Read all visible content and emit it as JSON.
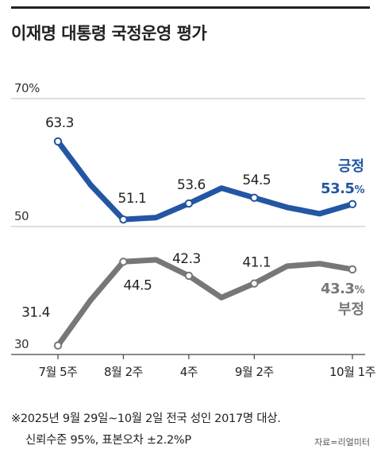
{
  "title": "이재명 대통령 국정운영 평가",
  "footnote": {
    "line1": "※2025년 9월 29일~10월 2일 전국 성인 2017명 대상.",
    "line2": "신뢰수준 95%, 표본오차 ±2.2%P"
  },
  "source": "자료=리얼미터",
  "colors": {
    "positive": "#2356a3",
    "negative": "#777777",
    "axis": "#444444",
    "grid": "#bbbbbb"
  },
  "chart_data": {
    "type": "line",
    "y_ticks": [
      {
        "value": 70,
        "label": "70%"
      },
      {
        "value": 50,
        "label": "50"
      },
      {
        "value": 30,
        "label": "30"
      }
    ],
    "ylim": [
      30,
      70
    ],
    "x_ticks": [
      {
        "x": 0,
        "label": "7월 5주"
      },
      {
        "x": 2,
        "label": "8월 2주"
      },
      {
        "x": 4,
        "label": "4주"
      },
      {
        "x": 6,
        "label": "9월 2주"
      },
      {
        "x": 9,
        "label": "10월 1주"
      }
    ],
    "xlim": [
      0,
      9
    ],
    "series": [
      {
        "name": "긍정",
        "final_label": "53.5",
        "final_unit": "%",
        "points": [
          {
            "x": 0,
            "y": 63.3,
            "label": "63.3",
            "marker": true
          },
          {
            "x": 1,
            "y": 56.5
          },
          {
            "x": 2,
            "y": 51.1,
            "label": "51.1",
            "marker": true
          },
          {
            "x": 3,
            "y": 51.4
          },
          {
            "x": 4,
            "y": 53.6,
            "label": "53.6",
            "marker": true
          },
          {
            "x": 5,
            "y": 56.0
          },
          {
            "x": 6,
            "y": 54.5,
            "label": "54.5",
            "marker": true
          },
          {
            "x": 7,
            "y": 53.0
          },
          {
            "x": 8,
            "y": 52.0
          },
          {
            "x": 9,
            "y": 53.5,
            "marker": true
          }
        ]
      },
      {
        "name": "부정",
        "final_label": "43.3",
        "final_unit": "%",
        "points": [
          {
            "x": 0,
            "y": 31.4,
            "label": "31.4",
            "marker": true
          },
          {
            "x": 1,
            "y": 38.5
          },
          {
            "x": 2,
            "y": 44.5,
            "label": "44.5",
            "marker": true
          },
          {
            "x": 3,
            "y": 44.8
          },
          {
            "x": 4,
            "y": 42.3,
            "label": "42.3",
            "marker": true
          },
          {
            "x": 5,
            "y": 38.9
          },
          {
            "x": 6,
            "y": 41.1,
            "label": "41.1",
            "marker": true
          },
          {
            "x": 7,
            "y": 43.8
          },
          {
            "x": 8,
            "y": 44.2
          },
          {
            "x": 9,
            "y": 43.3,
            "marker": true
          }
        ]
      }
    ]
  }
}
